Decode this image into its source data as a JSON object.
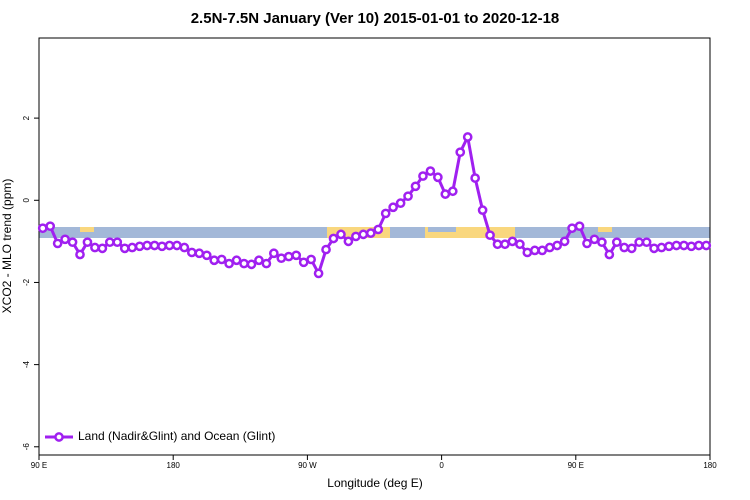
{
  "chart_data": {
    "type": "line",
    "title": "2.5N-7.5N January (Ver 10)   2015-01-01 to 2020-12-18",
    "x_label": "Longitude (deg E)",
    "y_label": "XCO2 - MLO trend (ppm)",
    "xlim": [
      90,
      540
    ],
    "ylim": [
      -6.2,
      3.95
    ],
    "xticks": [
      {
        "value": 90,
        "label": "90 E"
      },
      180,
      {
        "value": 270,
        "label": "90 W"
      },
      {
        "value": 360,
        "label": "0"
      },
      {
        "value": 450,
        "label": "90 E"
      },
      {
        "value": 540,
        "label": "180"
      }
    ],
    "yticks": [
      -6,
      -4,
      -2,
      0,
      2
    ],
    "legend": "bottomleft",
    "x": [
      92.5,
      97.5,
      102.5,
      107.5,
      112.5,
      117.5,
      122.5,
      127.5,
      132.5,
      137.5,
      142.5,
      147.5,
      152.5,
      157.5,
      162.5,
      167.5,
      172.5,
      177.5,
      182.5,
      187.5,
      192.5,
      197.5,
      202.5,
      207.5,
      212.5,
      217.5,
      222.5,
      227.5,
      232.5,
      237.5,
      242.5,
      247.5,
      252.5,
      257.5,
      262.5,
      267.5,
      272.5,
      277.5,
      282.5,
      287.5,
      292.5,
      297.5,
      302.5,
      307.5,
      312.5,
      317.5,
      322.5,
      327.5,
      332.5,
      337.5,
      342.5,
      347.5,
      352.5,
      357.5,
      362.5,
      367.5,
      372.5,
      377.5,
      382.5,
      387.5,
      392.5,
      397.5,
      402.5,
      407.5,
      412.5,
      417.5,
      422.5,
      427.5,
      432.5,
      437.5,
      442.5,
      447.5,
      452.5,
      457.5,
      462.5,
      467.5,
      472.5,
      477.5,
      482.5,
      487.5,
      492.5,
      497.5,
      502.5,
      507.5,
      512.5,
      517.5,
      522.5,
      527.5,
      532.5,
      537.5
    ],
    "series": [
      {
        "name": "Land (Nadir&Glint) and Ocean (Glint)",
        "color": "#a020f0",
        "values": [
          -0.68,
          -0.63,
          -1.05,
          -0.95,
          -1.02,
          -1.32,
          -1.02,
          -1.15,
          -1.17,
          -1.02,
          -1.02,
          -1.17,
          -1.15,
          -1.12,
          -1.1,
          -1.1,
          -1.12,
          -1.1,
          -1.1,
          -1.15,
          -1.27,
          -1.29,
          -1.34,
          -1.46,
          -1.44,
          -1.54,
          -1.46,
          -1.54,
          -1.56,
          -1.46,
          -1.54,
          -1.29,
          -1.41,
          -1.37,
          -1.34,
          -1.51,
          -1.44,
          -1.78,
          -1.2,
          -0.93,
          -0.83,
          -1.0,
          -0.88,
          -0.83,
          -0.8,
          -0.71,
          -0.32,
          -0.17,
          -0.07,
          0.1,
          0.34,
          0.59,
          0.71,
          0.56,
          0.15,
          0.22,
          1.17,
          1.54,
          0.54,
          -0.24,
          -0.85,
          -1.07,
          -1.07,
          -1.0,
          -1.07,
          -1.27,
          -1.22,
          -1.22,
          -1.15,
          -1.1,
          -1.0,
          -0.68,
          -0.63,
          -1.05,
          -0.95,
          -1.02,
          -1.32,
          -1.02,
          -1.15,
          -1.17,
          -1.02,
          -1.02,
          -1.17,
          -1.15,
          -1.12,
          -1.1,
          -1.1,
          -1.12,
          -1.1,
          -1.1
        ]
      }
    ]
  }
}
